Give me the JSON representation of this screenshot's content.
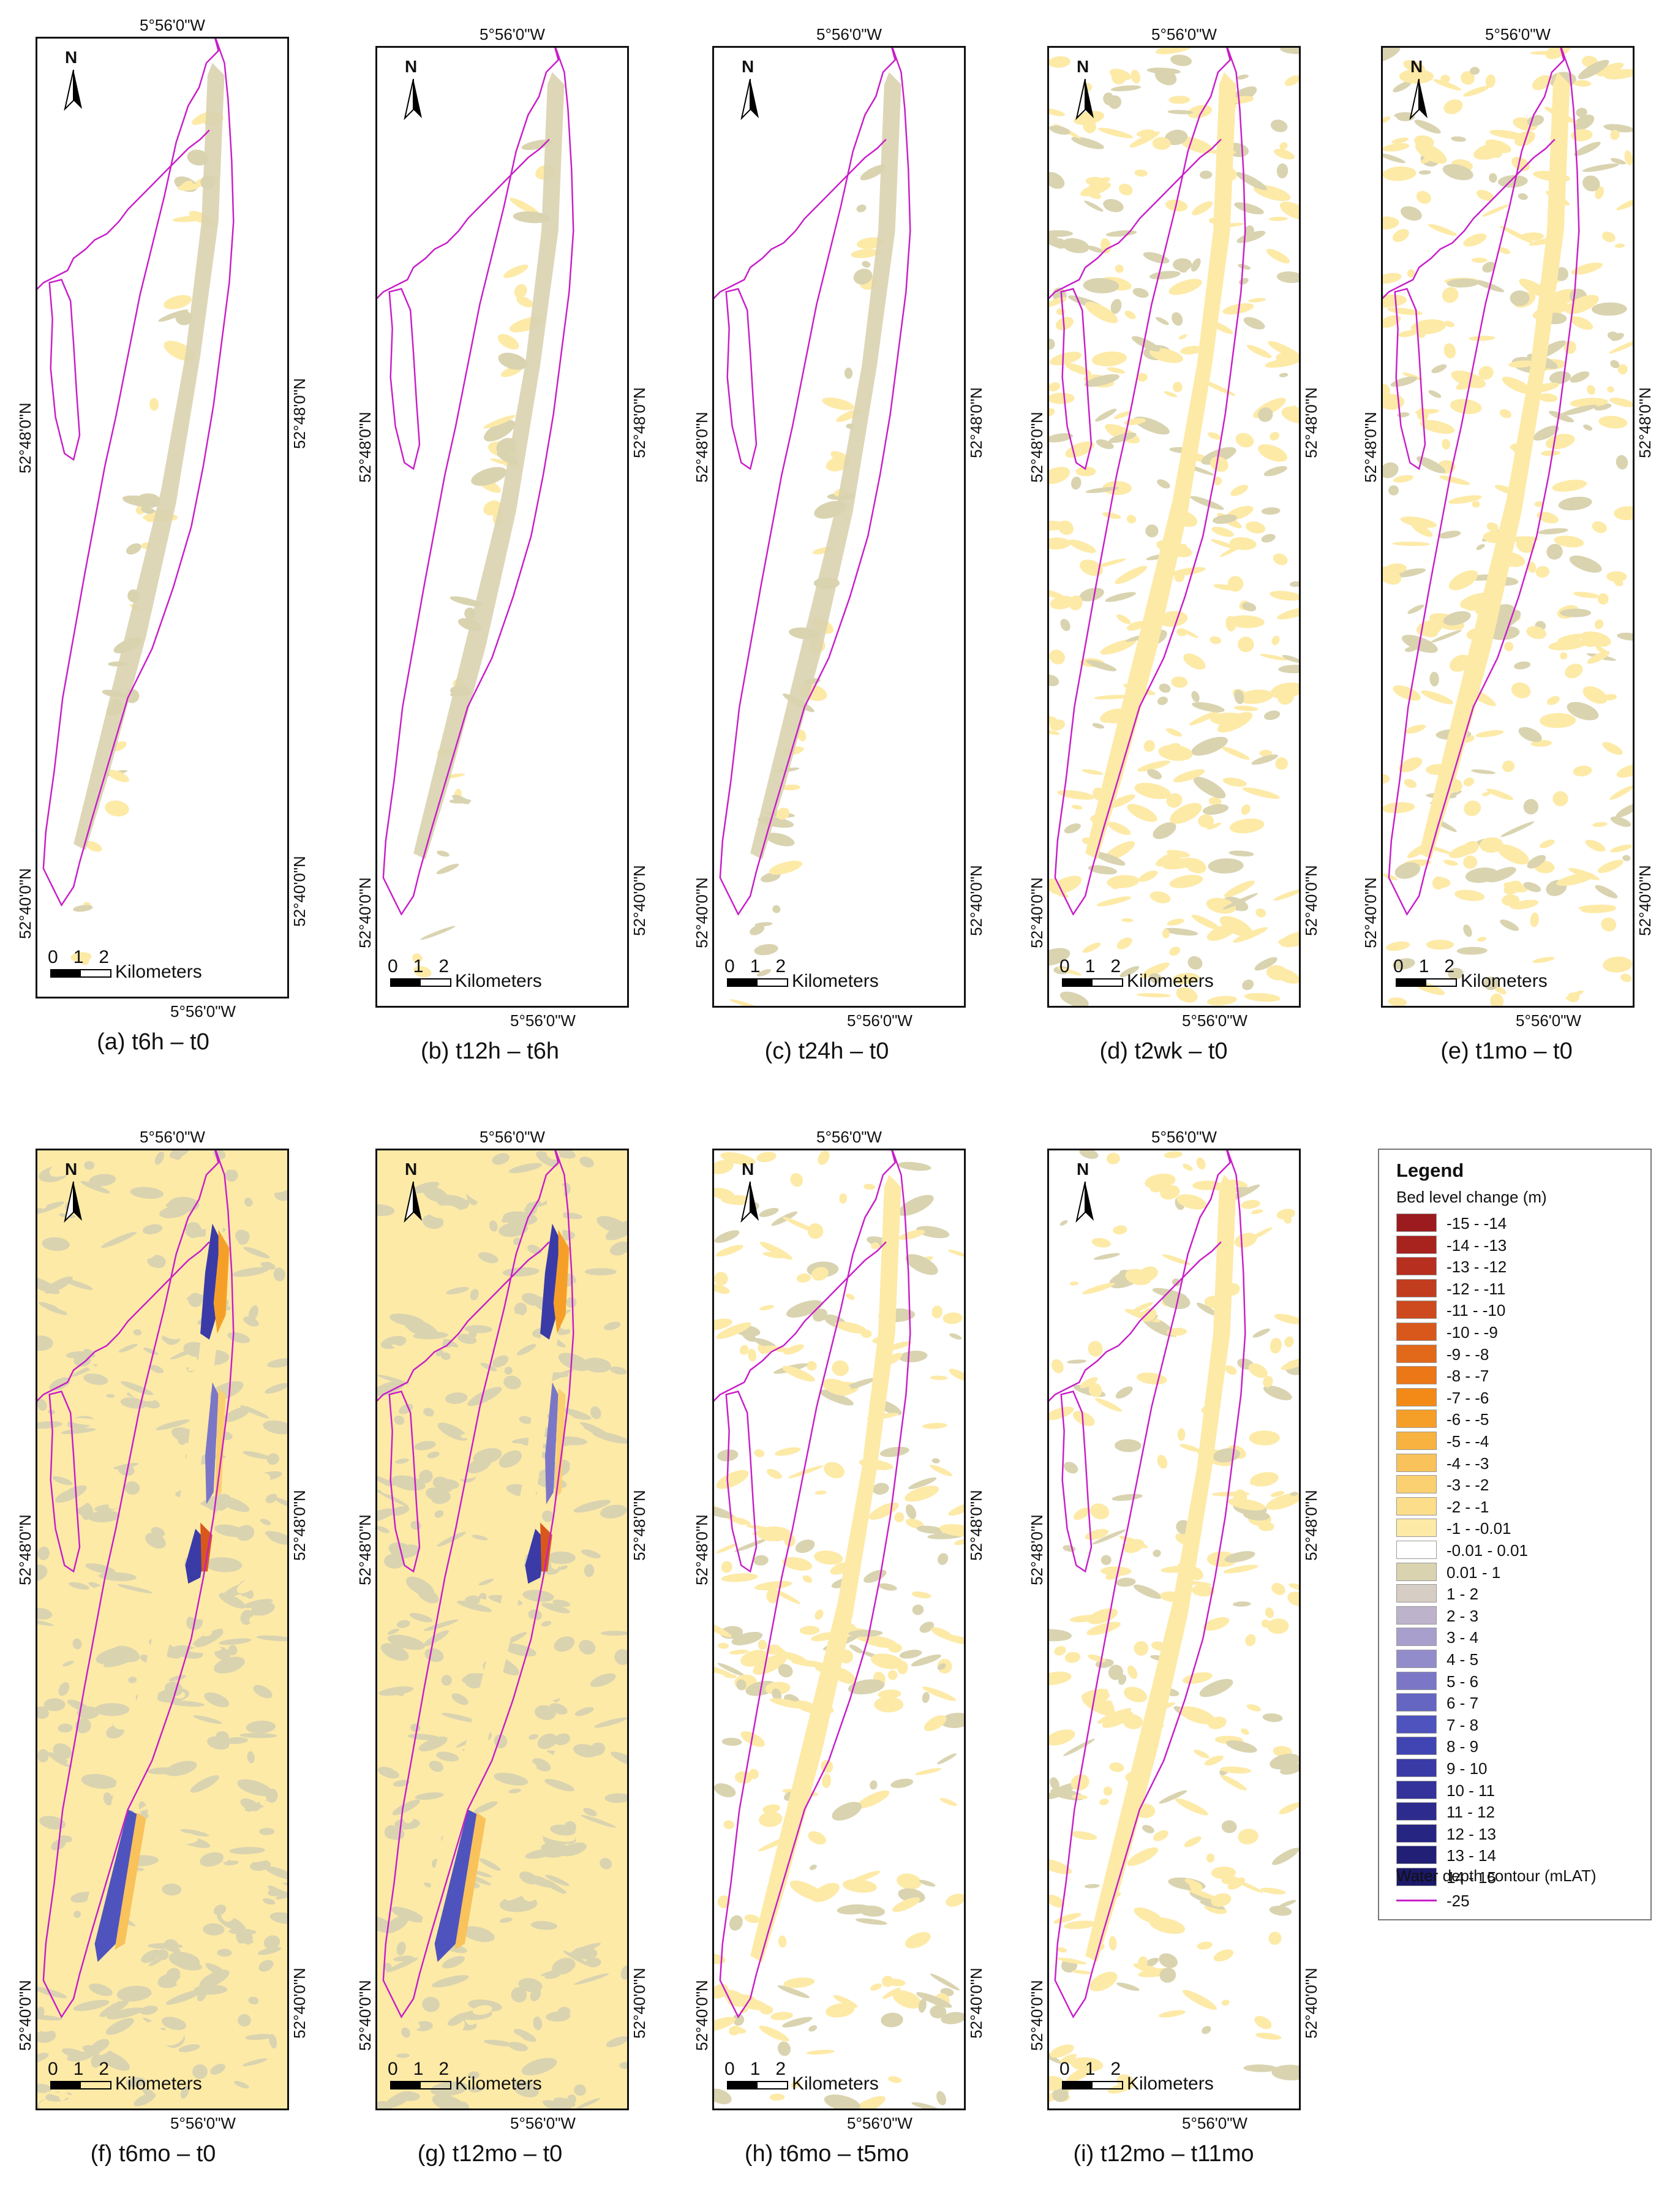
{
  "coords": {
    "top_lon": "5°56'0\"W",
    "bottom_lon": "5°56'0\"W",
    "lat_upper": "52°48'0\"N",
    "lat_lower": "52°40'0\"N"
  },
  "north_label": "N",
  "scale": {
    "numbers": "0   1   2",
    "unit": "Kilometers"
  },
  "panels": [
    {
      "caption": "(a) t6h – t0",
      "fill": "sparse"
    },
    {
      "caption": "(b) t12h – t6h",
      "fill": "sparse"
    },
    {
      "caption": "(c) t24h – t0",
      "fill": "sparse"
    },
    {
      "caption": "(d) t2wk – t0",
      "fill": "medium"
    },
    {
      "caption": "(e) t1mo – t0",
      "fill": "medium"
    },
    {
      "caption": "(f) t6mo – t0",
      "fill": "dense"
    },
    {
      "caption": "(g) t12mo – t0",
      "fill": "dense"
    },
    {
      "caption": "(h) t6mo – t5mo",
      "fill": "light"
    },
    {
      "caption": "(i) t12mo – t11mo",
      "fill": "light"
    }
  ],
  "legend": {
    "title": "Legend",
    "subtitle": "Bed level change (m)",
    "classes": [
      {
        "label": "-15 - -14",
        "color": "#9b1b1e"
      },
      {
        "label": "-14 - -13",
        "color": "#a8231e"
      },
      {
        "label": "-13 - -12",
        "color": "#b72f1f"
      },
      {
        "label": "-12 - -11",
        "color": "#c23c1f"
      },
      {
        "label": "-11 - -10",
        "color": "#cc4a1e"
      },
      {
        "label": "-10 - -9",
        "color": "#d8581c"
      },
      {
        "label": "-9 - -8",
        "color": "#e2681a"
      },
      {
        "label": "-8 - -7",
        "color": "#ec7717"
      },
      {
        "label": "-7 - -6",
        "color": "#f38a17"
      },
      {
        "label": "-6 - -5",
        "color": "#f69f28"
      },
      {
        "label": "-5 - -4",
        "color": "#f8b23f"
      },
      {
        "label": "-4 - -3",
        "color": "#f9c25a"
      },
      {
        "label": "-3 - -2",
        "color": "#fbd071"
      },
      {
        "label": "-2 - -1",
        "color": "#fcdd8a"
      },
      {
        "label": "-1 - -0.01",
        "color": "#fdeaa7"
      },
      {
        "label": "-0.01 - 0.01",
        "color": "#ffffff"
      },
      {
        "label": "0.01 - 1",
        "color": "#d9d3b0"
      },
      {
        "label": "1 - 2",
        "color": "#d6cdc4"
      },
      {
        "label": "2 - 3",
        "color": "#bdb3cb"
      },
      {
        "label": "3 - 4",
        "color": "#a99fcd"
      },
      {
        "label": "4 - 5",
        "color": "#938ccb"
      },
      {
        "label": "5 - 6",
        "color": "#7b77c6"
      },
      {
        "label": "6 - 7",
        "color": "#6466c2"
      },
      {
        "label": "7 - 8",
        "color": "#4f53bd"
      },
      {
        "label": "8 - 9",
        "color": "#4145b3"
      },
      {
        "label": "9 - 10",
        "color": "#3a3ba7"
      },
      {
        "label": "10 - 11",
        "color": "#33339b"
      },
      {
        "label": "11 - 12",
        "color": "#2d2c8e"
      },
      {
        "label": "12 - 13",
        "color": "#272582"
      },
      {
        "label": "13 - 14",
        "color": "#211f76"
      },
      {
        "label": "14 - 15",
        "color": "#1b196a"
      }
    ],
    "contour_title": "Water depth contour (mLAT)",
    "contour_label": "-25",
    "contour_color": "#c81ec8"
  }
}
